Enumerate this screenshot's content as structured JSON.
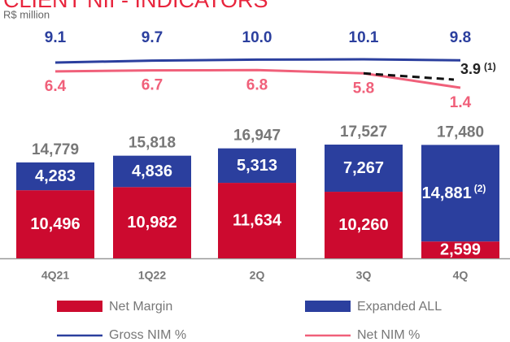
{
  "chart_data": {
    "type": "bar",
    "title": "CLIENT NII - INDICATORS",
    "subtitle": "R$ million",
    "categories": [
      "4Q21",
      "1Q22",
      "2Q",
      "3Q",
      "4Q"
    ],
    "series": [
      {
        "name": "Net Margin",
        "color": "#cc0a2f",
        "values": [
          10496,
          10982,
          11634,
          10260,
          2599
        ],
        "value_labels": [
          "10,496",
          "10,982",
          "11,634",
          "10,260",
          "2,599"
        ]
      },
      {
        "name": "Expanded ALL",
        "color": "#2b3f9e",
        "values": [
          4283,
          4836,
          5313,
          7267,
          14881
        ],
        "value_labels": [
          "4,283",
          "4,836",
          "5,313",
          "7,267",
          "14,881"
        ]
      }
    ],
    "total_labels": [
      "14,779",
      "15,818",
      "16,947",
      "17,527",
      "17,480"
    ],
    "bar_note": "(2)",
    "lines": [
      {
        "name": "Gross NIM %",
        "color": "#2b3f9e",
        "values": [
          9.1,
          9.7,
          10.0,
          10.1,
          9.8
        ],
        "value_labels": [
          "9.1",
          "9.7",
          "10.0",
          "10.1",
          "9.8"
        ]
      },
      {
        "name": "Net NIM %",
        "color": "#f0607a",
        "values": [
          6.4,
          6.7,
          6.8,
          5.8,
          1.4
        ]
      }
    ],
    "annotation": {
      "value": 3.9,
      "note": "(1)"
    }
  }
}
